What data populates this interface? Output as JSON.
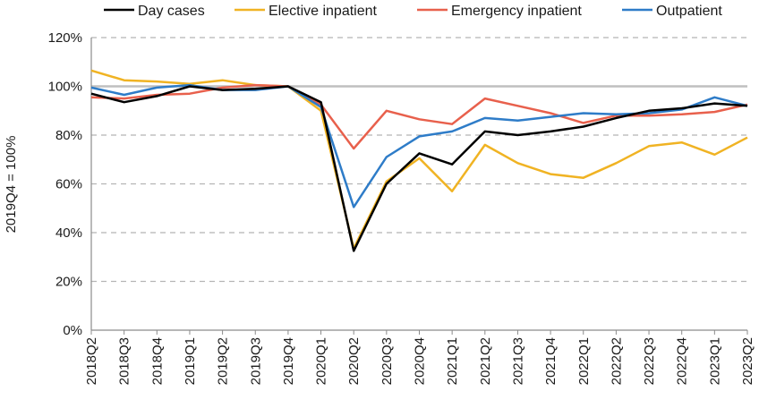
{
  "chart_data": {
    "type": "line",
    "ylabel": "2019Q4 = 100%",
    "xlabel": "",
    "title": "",
    "ylim": [
      0,
      120
    ],
    "yticks": [
      "0%",
      "20%",
      "40%",
      "60%",
      "80%",
      "100%",
      "120%"
    ],
    "grid": "horizontal dashed",
    "legend_position": "top",
    "reference_line": 100,
    "categories": [
      "2018Q2",
      "2018Q3",
      "2018Q4",
      "2019Q1",
      "2019Q2",
      "2019Q3",
      "2019Q4",
      "2020Q1",
      "2020Q2",
      "2020Q3",
      "2020Q4",
      "2021Q1",
      "2021Q2",
      "2021Q3",
      "2021Q4",
      "2022Q1",
      "2022Q2",
      "2022Q3",
      "2022Q4",
      "2023Q1",
      "2023Q2"
    ],
    "series": [
      {
        "name": "Day cases",
        "color": "#000000",
        "values": [
          97,
          93.5,
          96,
          100,
          98.5,
          99,
          100,
          93.5,
          32.5,
          60,
          72.5,
          68,
          81.5,
          80,
          81.5,
          83.5,
          87,
          90,
          91,
          93,
          92
        ]
      },
      {
        "name": "Elective inpatient",
        "color": "#F0B323",
        "values": [
          106.5,
          102.5,
          102,
          101,
          102.5,
          100.5,
          100,
          90,
          33.5,
          61,
          70.5,
          57,
          76,
          68.5,
          64,
          62.5,
          68.5,
          75.5,
          77,
          72,
          79
        ]
      },
      {
        "name": "Emergency inpatient",
        "color": "#E8604C",
        "values": [
          95.5,
          95,
          96.5,
          97,
          99.5,
          100.5,
          100,
          92.5,
          74.5,
          90,
          86.5,
          84.5,
          95,
          92,
          89,
          85,
          88,
          88,
          88.5,
          89.5,
          92.5
        ]
      },
      {
        "name": "Outpatient",
        "color": "#2E7CC8",
        "values": [
          99.5,
          96.5,
          99.5,
          100.5,
          98.5,
          98.5,
          100,
          91.5,
          50.5,
          71,
          79.5,
          81.5,
          87,
          86,
          87.5,
          89,
          88.5,
          89,
          90.5,
          95.5,
          92
        ]
      }
    ]
  }
}
